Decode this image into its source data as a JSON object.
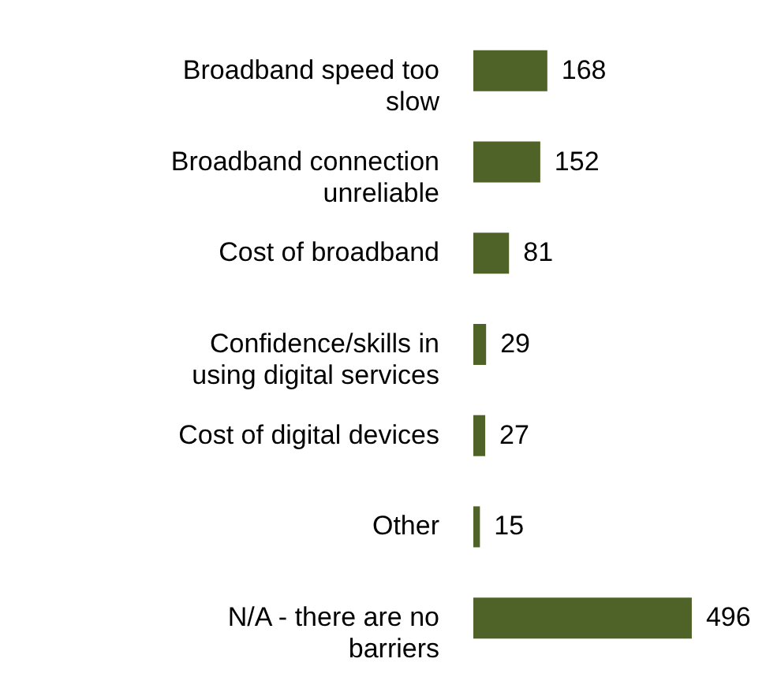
{
  "chart_data": {
    "type": "bar",
    "orientation": "horizontal",
    "categories": [
      "Broadband speed too slow",
      "Broadband connection unreliable",
      "Cost of broadband",
      "Confidence/skills in using digital services",
      "Cost of digital devices",
      "Other",
      "N/A - there are no barriers"
    ],
    "values": [
      168,
      152,
      81,
      29,
      27,
      15,
      496
    ],
    "color": "#4f6228",
    "data_labels": true
  }
}
